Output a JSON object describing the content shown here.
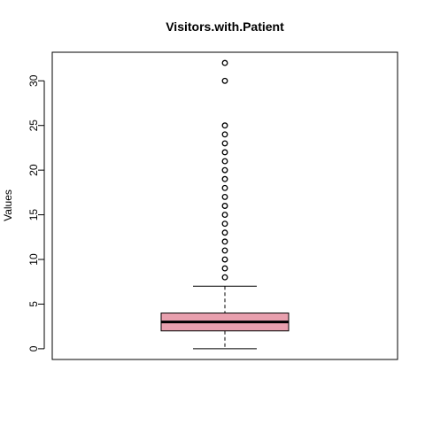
{
  "chart_data": {
    "type": "boxplot",
    "title": "Visitors.with.Patient",
    "xlabel": "",
    "ylabel": "Values",
    "ylim": [
      -1.2,
      33.2
    ],
    "yticks": [
      0,
      5,
      10,
      15,
      20,
      25,
      30
    ],
    "ytick_labels": [
      "0",
      "5",
      "10",
      "15",
      "20",
      "25",
      "30"
    ],
    "box": {
      "whisker_low": 0,
      "q1": 2,
      "median": 3,
      "q3": 4,
      "whisker_high": 7,
      "fill_color": "#e8a0ae"
    },
    "outliers": [
      8,
      9,
      10,
      11,
      12,
      13,
      14,
      15,
      16,
      17,
      18,
      19,
      20,
      21,
      22,
      23,
      24,
      25,
      30,
      32
    ],
    "grid": false,
    "legend": "none"
  }
}
